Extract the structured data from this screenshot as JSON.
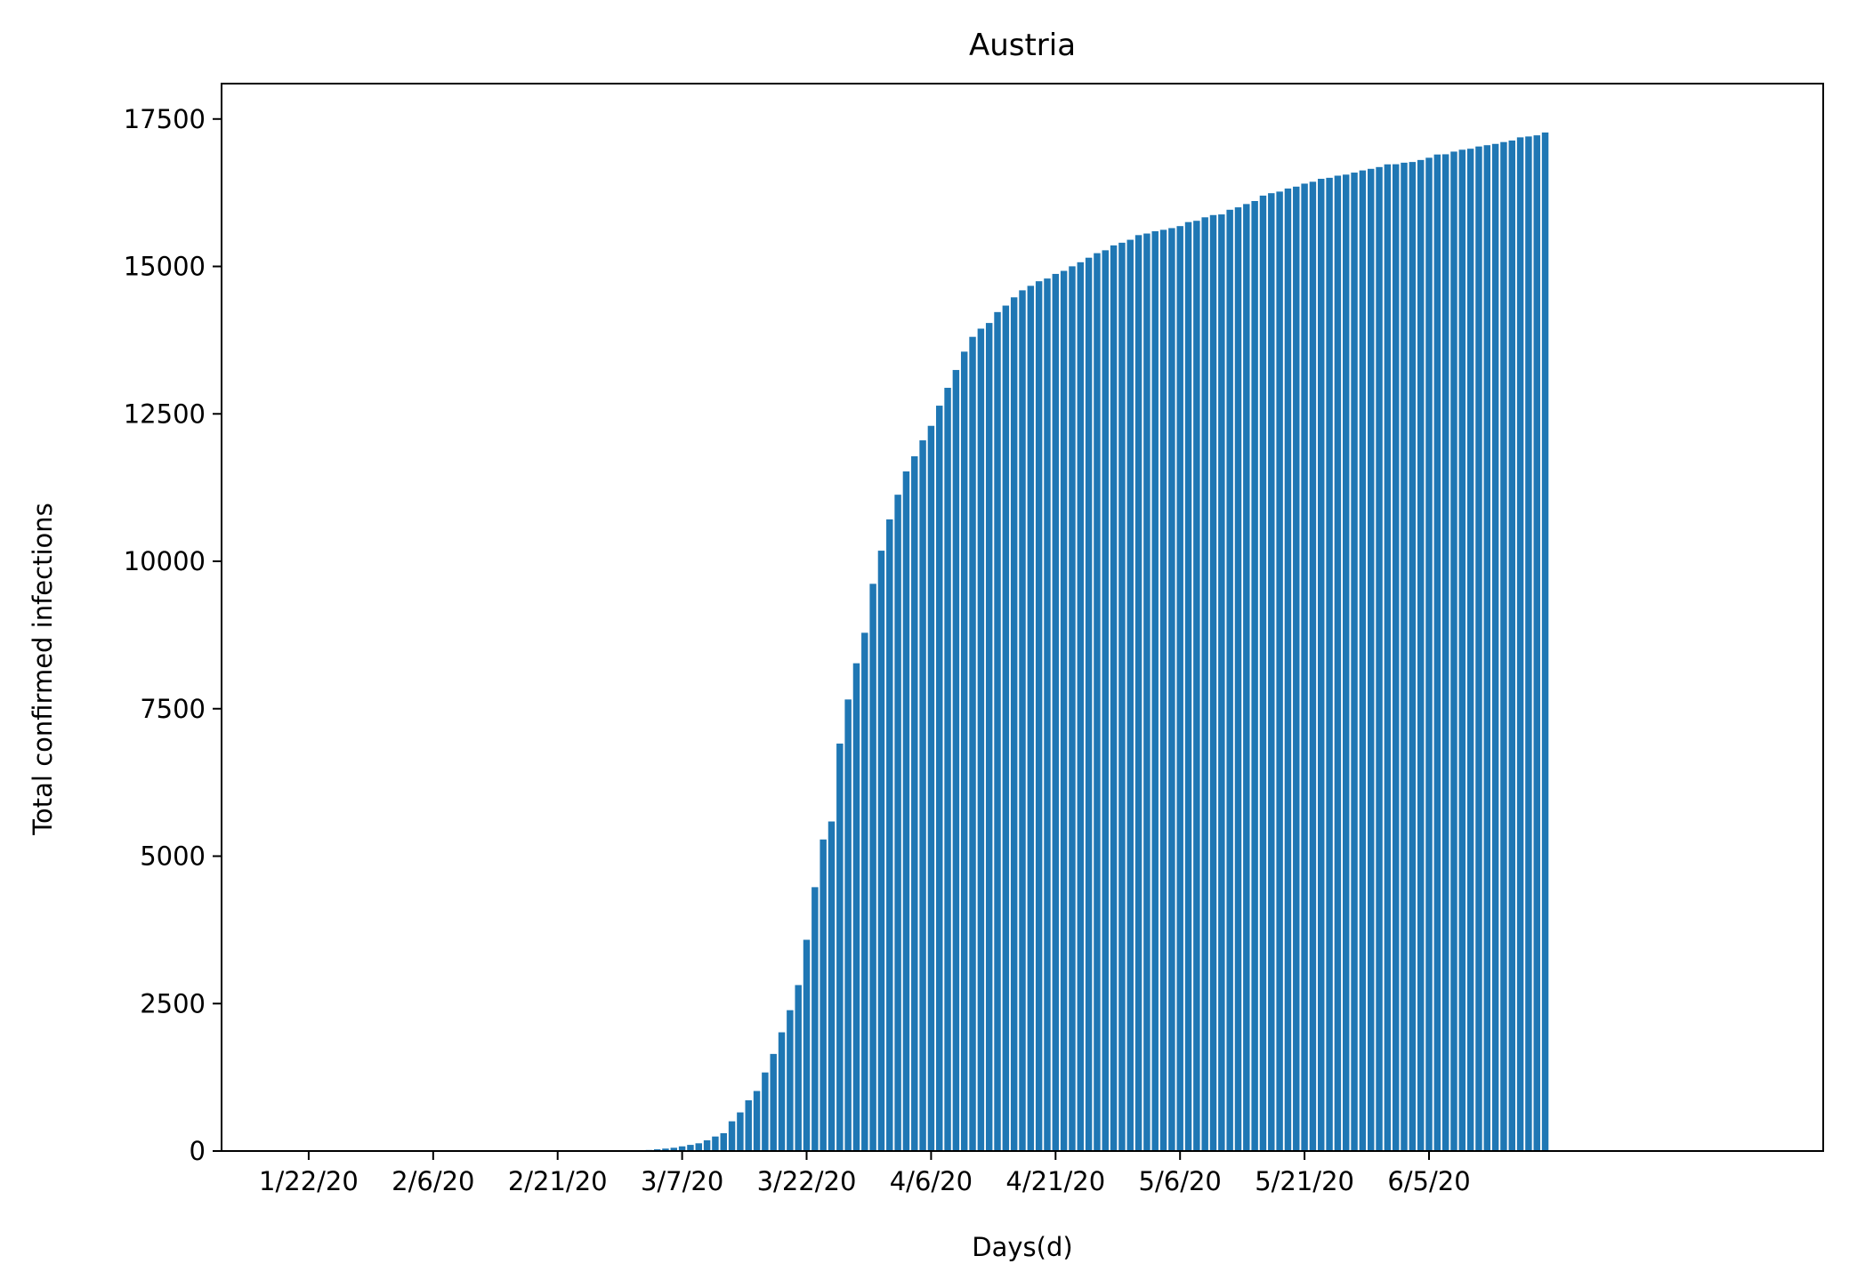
{
  "chart_data": {
    "type": "bar",
    "title": "Austria",
    "xlabel": "Days(d)",
    "ylabel": "Total confirmed infections",
    "ylim": [
      0,
      18100
    ],
    "xlim": [
      -10.5,
      182.5
    ],
    "grid": false,
    "bar_color": "#1f77b4",
    "start_date": "1/22/20",
    "x_ticks": [
      {
        "label": "1/22/20",
        "index": 0
      },
      {
        "label": "2/6/20",
        "index": 15
      },
      {
        "label": "2/21/20",
        "index": 30
      },
      {
        "label": "3/7/20",
        "index": 45
      },
      {
        "label": "3/22/20",
        "index": 60
      },
      {
        "label": "4/6/20",
        "index": 75
      },
      {
        "label": "4/21/20",
        "index": 90
      },
      {
        "label": "5/6/20",
        "index": 105
      },
      {
        "label": "5/21/20",
        "index": 120
      },
      {
        "label": "6/5/20",
        "index": 135
      }
    ],
    "y_ticks": [
      0,
      2500,
      5000,
      7500,
      10000,
      12500,
      15000,
      17500
    ],
    "values": [
      0,
      0,
      0,
      0,
      0,
      0,
      0,
      0,
      0,
      0,
      0,
      0,
      0,
      0,
      0,
      0,
      0,
      0,
      0,
      0,
      0,
      0,
      0,
      0,
      0,
      0,
      0,
      0,
      0,
      0,
      0,
      0,
      0,
      0,
      0,
      0,
      2,
      2,
      3,
      9,
      12,
      18,
      29,
      41,
      55,
      79,
      104,
      131,
      182,
      246,
      302,
      504,
      655,
      860,
      1018,
      1332,
      1646,
      2013,
      2388,
      2814,
      3582,
      4474,
      5283,
      5588,
      6909,
      7657,
      8271,
      8788,
      9618,
      10180,
      10711,
      11129,
      11524,
      11781,
      12051,
      12297,
      12639,
      12942,
      13244,
      13555,
      13806,
      13945,
      14041,
      14226,
      14336,
      14476,
      14595,
      14671,
      14749,
      14795,
      14873,
      14925,
      15002,
      15071,
      15148,
      15225,
      15274,
      15357,
      15402,
      15452,
      15531,
      15558,
      15597,
      15621,
      15650,
      15684,
      15752,
      15774,
      15833,
      15871,
      15882,
      15961,
      16002,
      16058,
      16109,
      16201,
      16242,
      16269,
      16321,
      16353,
      16404,
      16436,
      16486,
      16503,
      16539,
      16557,
      16591,
      16628,
      16655,
      16685,
      16731,
      16733,
      16759,
      16771,
      16805,
      16843,
      16898,
      16902,
      16947,
      16979,
      16996,
      17034,
      17056,
      17078,
      17109,
      17135,
      17189,
      17204,
      17223,
      17271
    ]
  }
}
